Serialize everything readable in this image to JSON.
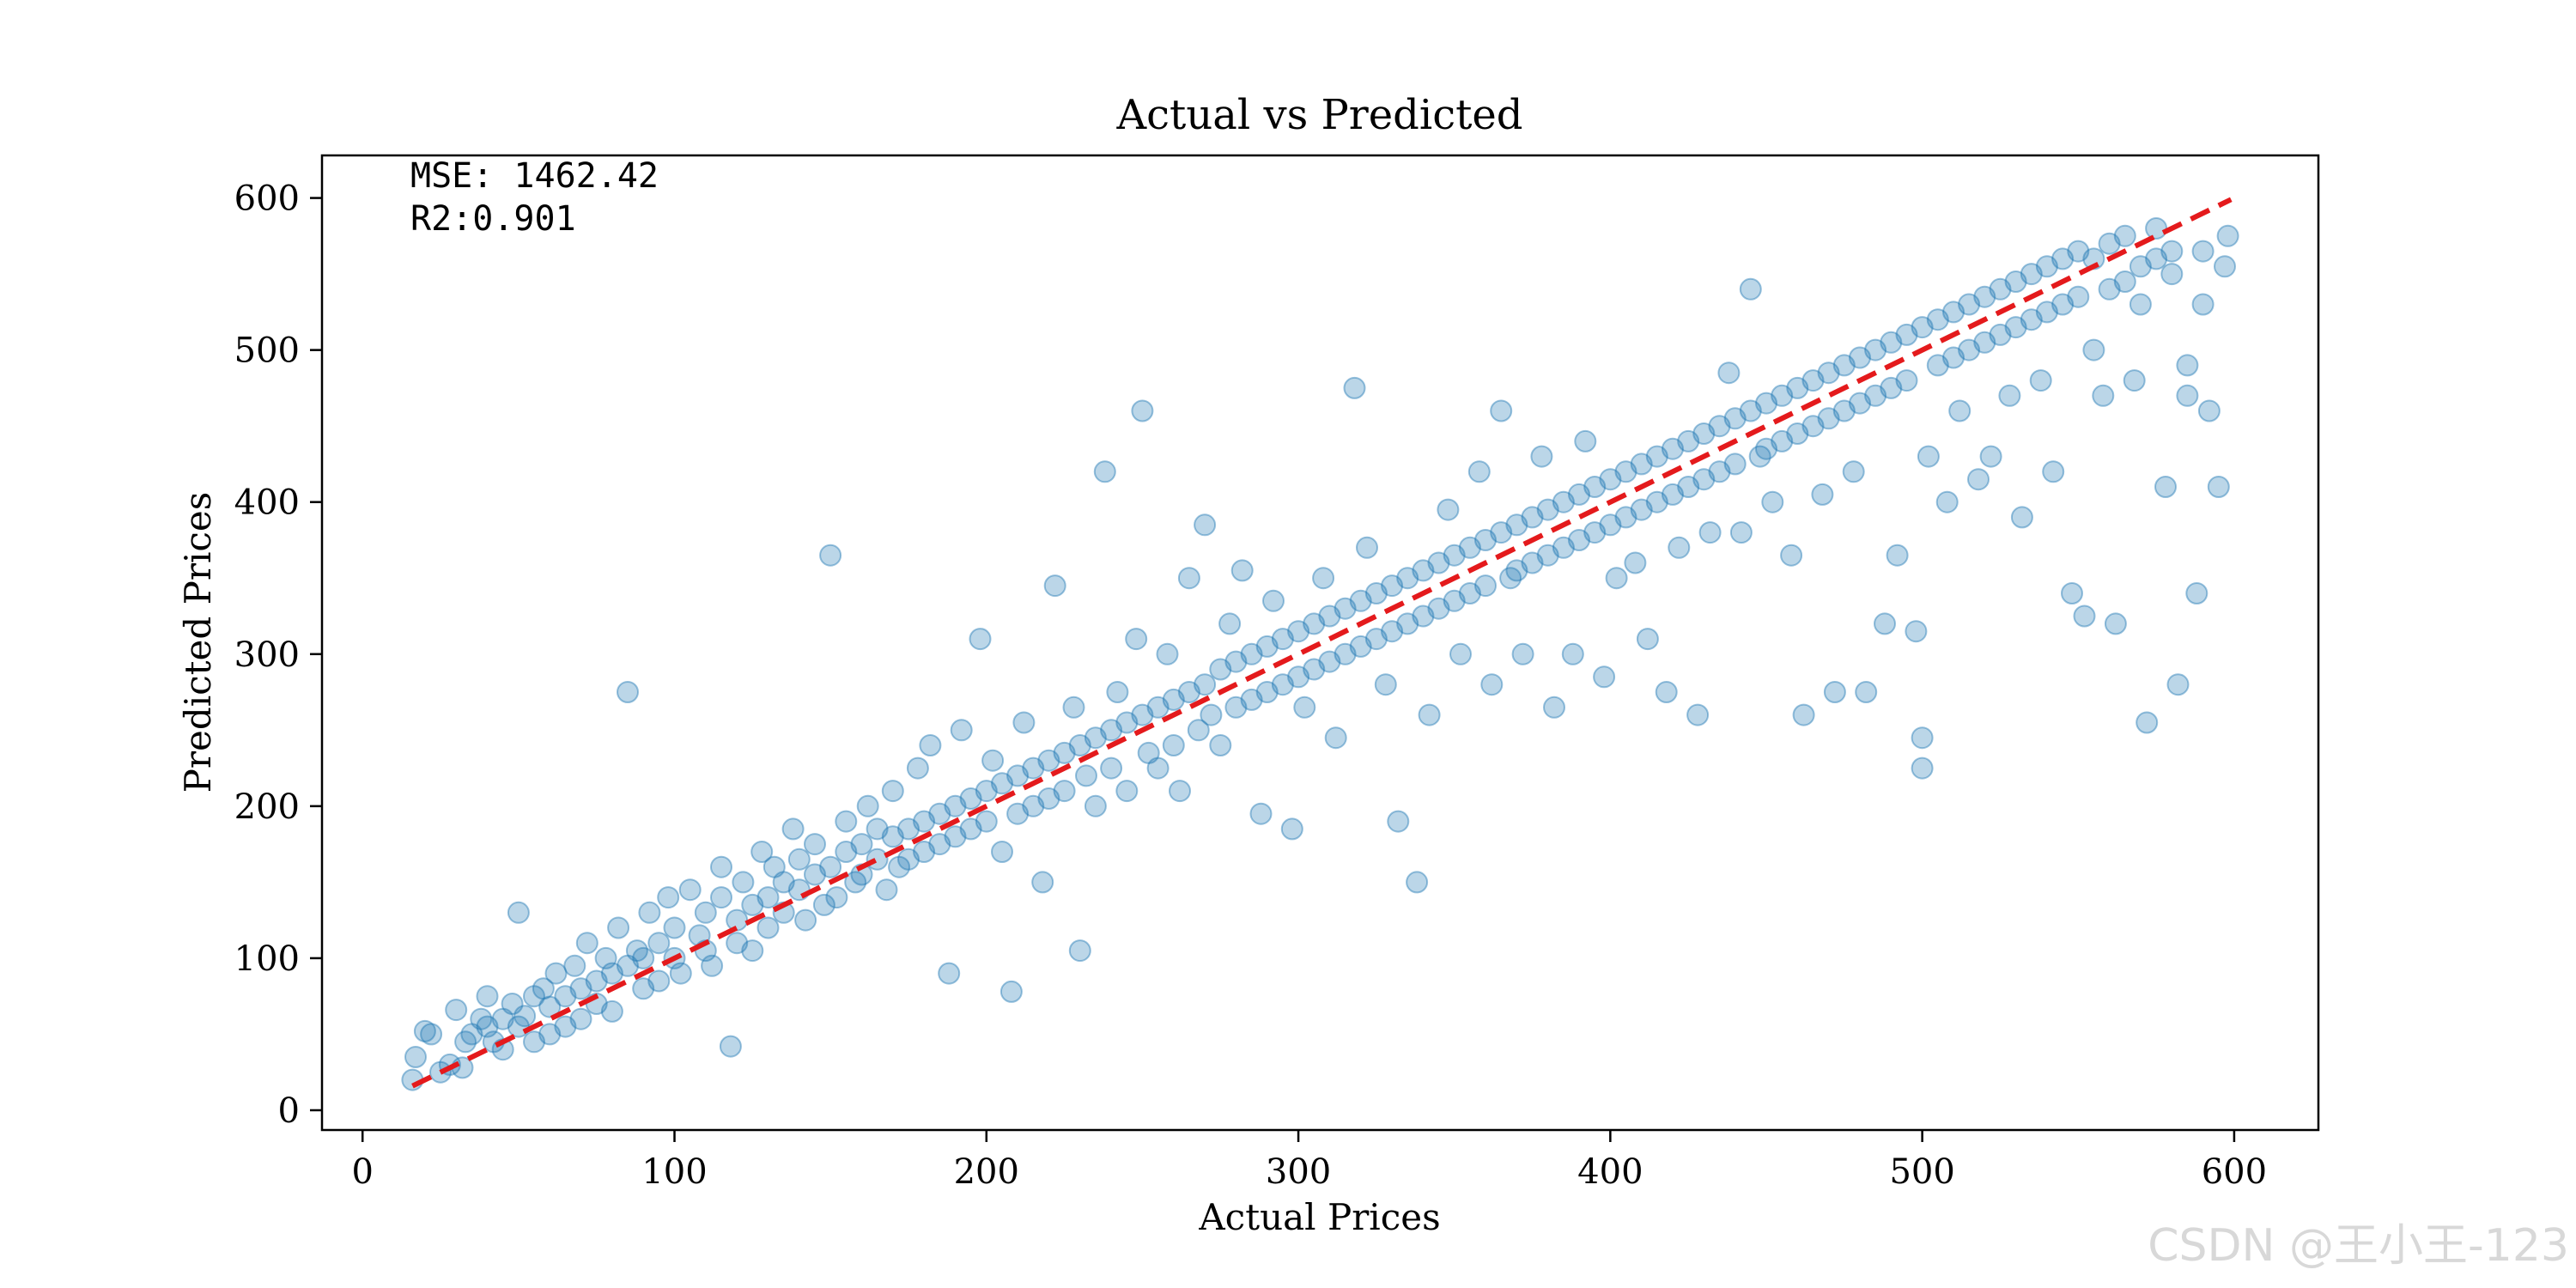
{
  "chart_data": {
    "type": "scatter",
    "title": "Actual vs Predicted",
    "xlabel": "Actual Prices",
    "ylabel": "Predicted Prices",
    "xlim": [
      -13,
      627
    ],
    "ylim": [
      -13,
      628
    ],
    "xticks": [
      0,
      100,
      200,
      300,
      400,
      500,
      600
    ],
    "yticks": [
      0,
      100,
      200,
      300,
      400,
      500,
      600
    ],
    "grid": false,
    "point_color": "#1f77b4",
    "point_alpha": 0.3,
    "reference_line": {
      "style": "dashed",
      "color": "#e41a1c",
      "x": [
        16,
        599
      ],
      "y": [
        16,
        599
      ]
    },
    "annotations": [
      {
        "label": "MSE: 1462.42"
      },
      {
        "label": "R2:0.901"
      }
    ],
    "points": [
      [
        16,
        20
      ],
      [
        17,
        35
      ],
      [
        20,
        52
      ],
      [
        22,
        50
      ],
      [
        25,
        25
      ],
      [
        28,
        30
      ],
      [
        30,
        66
      ],
      [
        32,
        28
      ],
      [
        33,
        45
      ],
      [
        35,
        50
      ],
      [
        38,
        60
      ],
      [
        40,
        55
      ],
      [
        40,
        75
      ],
      [
        42,
        45
      ],
      [
        45,
        60
      ],
      [
        45,
        40
      ],
      [
        48,
        70
      ],
      [
        50,
        55
      ],
      [
        50,
        130
      ],
      [
        52,
        62
      ],
      [
        55,
        75
      ],
      [
        55,
        45
      ],
      [
        58,
        80
      ],
      [
        60,
        68
      ],
      [
        60,
        50
      ],
      [
        62,
        90
      ],
      [
        65,
        75
      ],
      [
        65,
        55
      ],
      [
        68,
        95
      ],
      [
        70,
        80
      ],
      [
        70,
        60
      ],
      [
        72,
        110
      ],
      [
        75,
        85
      ],
      [
        75,
        70
      ],
      [
        78,
        100
      ],
      [
        80,
        90
      ],
      [
        80,
        65
      ],
      [
        82,
        120
      ],
      [
        85,
        95
      ],
      [
        85,
        275
      ],
      [
        88,
        105
      ],
      [
        90,
        100
      ],
      [
        90,
        80
      ],
      [
        92,
        130
      ],
      [
        95,
        110
      ],
      [
        95,
        85
      ],
      [
        98,
        140
      ],
      [
        100,
        100
      ],
      [
        100,
        120
      ],
      [
        102,
        90
      ],
      [
        105,
        145
      ],
      [
        108,
        115
      ],
      [
        110,
        105
      ],
      [
        110,
        130
      ],
      [
        112,
        95
      ],
      [
        115,
        140
      ],
      [
        115,
        160
      ],
      [
        118,
        42
      ],
      [
        120,
        125
      ],
      [
        120,
        110
      ],
      [
        122,
        150
      ],
      [
        125,
        135
      ],
      [
        125,
        105
      ],
      [
        128,
        170
      ],
      [
        130,
        140
      ],
      [
        130,
        120
      ],
      [
        132,
        160
      ],
      [
        135,
        150
      ],
      [
        135,
        130
      ],
      [
        138,
        185
      ],
      [
        140,
        145
      ],
      [
        140,
        165
      ],
      [
        142,
        125
      ],
      [
        145,
        155
      ],
      [
        145,
        175
      ],
      [
        148,
        135
      ],
      [
        150,
        160
      ],
      [
        150,
        365
      ],
      [
        152,
        140
      ],
      [
        155,
        170
      ],
      [
        155,
        190
      ],
      [
        158,
        150
      ],
      [
        160,
        175
      ],
      [
        160,
        155
      ],
      [
        162,
        200
      ],
      [
        165,
        165
      ],
      [
        165,
        185
      ],
      [
        168,
        145
      ],
      [
        170,
        180
      ],
      [
        170,
        210
      ],
      [
        172,
        160
      ],
      [
        175,
        185
      ],
      [
        175,
        165
      ],
      [
        178,
        225
      ],
      [
        180,
        190
      ],
      [
        180,
        170
      ],
      [
        182,
        240
      ],
      [
        185,
        195
      ],
      [
        185,
        175
      ],
      [
        188,
        90
      ],
      [
        190,
        200
      ],
      [
        190,
        180
      ],
      [
        192,
        250
      ],
      [
        195,
        205
      ],
      [
        195,
        185
      ],
      [
        198,
        310
      ],
      [
        200,
        210
      ],
      [
        200,
        190
      ],
      [
        202,
        230
      ],
      [
        205,
        215
      ],
      [
        205,
        170
      ],
      [
        208,
        78
      ],
      [
        210,
        220
      ],
      [
        210,
        195
      ],
      [
        212,
        255
      ],
      [
        215,
        225
      ],
      [
        215,
        200
      ],
      [
        218,
        150
      ],
      [
        220,
        230
      ],
      [
        220,
        205
      ],
      [
        222,
        345
      ],
      [
        225,
        235
      ],
      [
        225,
        210
      ],
      [
        228,
        265
      ],
      [
        230,
        240
      ],
      [
        230,
        105
      ],
      [
        232,
        220
      ],
      [
        235,
        245
      ],
      [
        235,
        200
      ],
      [
        238,
        420
      ],
      [
        240,
        250
      ],
      [
        240,
        225
      ],
      [
        242,
        275
      ],
      [
        245,
        255
      ],
      [
        245,
        210
      ],
      [
        248,
        310
      ],
      [
        250,
        260
      ],
      [
        250,
        460
      ],
      [
        252,
        235
      ],
      [
        255,
        265
      ],
      [
        255,
        225
      ],
      [
        258,
        300
      ],
      [
        260,
        270
      ],
      [
        260,
        240
      ],
      [
        262,
        210
      ],
      [
        265,
        275
      ],
      [
        265,
        350
      ],
      [
        268,
        250
      ],
      [
        270,
        280
      ],
      [
        270,
        385
      ],
      [
        272,
        260
      ],
      [
        275,
        290
      ],
      [
        275,
        240
      ],
      [
        278,
        320
      ],
      [
        280,
        295
      ],
      [
        280,
        265
      ],
      [
        282,
        355
      ],
      [
        285,
        300
      ],
      [
        285,
        270
      ],
      [
        288,
        195
      ],
      [
        290,
        305
      ],
      [
        290,
        275
      ],
      [
        292,
        335
      ],
      [
        295,
        310
      ],
      [
        295,
        280
      ],
      [
        298,
        185
      ],
      [
        300,
        315
      ],
      [
        300,
        285
      ],
      [
        302,
        265
      ],
      [
        305,
        320
      ],
      [
        305,
        290
      ],
      [
        308,
        350
      ],
      [
        310,
        325
      ],
      [
        310,
        295
      ],
      [
        312,
        245
      ],
      [
        315,
        330
      ],
      [
        315,
        300
      ],
      [
        318,
        475
      ],
      [
        320,
        335
      ],
      [
        320,
        305
      ],
      [
        322,
        370
      ],
      [
        325,
        340
      ],
      [
        325,
        310
      ],
      [
        328,
        280
      ],
      [
        330,
        345
      ],
      [
        330,
        315
      ],
      [
        332,
        190
      ],
      [
        335,
        350
      ],
      [
        335,
        320
      ],
      [
        338,
        150
      ],
      [
        340,
        355
      ],
      [
        340,
        325
      ],
      [
        342,
        260
      ],
      [
        345,
        360
      ],
      [
        345,
        330
      ],
      [
        348,
        395
      ],
      [
        350,
        365
      ],
      [
        350,
        335
      ],
      [
        352,
        300
      ],
      [
        355,
        370
      ],
      [
        355,
        340
      ],
      [
        358,
        420
      ],
      [
        360,
        375
      ],
      [
        360,
        345
      ],
      [
        362,
        280
      ],
      [
        365,
        380
      ],
      [
        365,
        460
      ],
      [
        368,
        350
      ],
      [
        370,
        385
      ],
      [
        370,
        355
      ],
      [
        372,
        300
      ],
      [
        375,
        390
      ],
      [
        375,
        360
      ],
      [
        378,
        430
      ],
      [
        380,
        395
      ],
      [
        380,
        365
      ],
      [
        382,
        265
      ],
      [
        385,
        400
      ],
      [
        385,
        370
      ],
      [
        388,
        300
      ],
      [
        390,
        405
      ],
      [
        390,
        375
      ],
      [
        392,
        440
      ],
      [
        395,
        410
      ],
      [
        395,
        380
      ],
      [
        398,
        285
      ],
      [
        400,
        415
      ],
      [
        400,
        385
      ],
      [
        402,
        350
      ],
      [
        405,
        420
      ],
      [
        405,
        390
      ],
      [
        408,
        360
      ],
      [
        410,
        425
      ],
      [
        410,
        395
      ],
      [
        412,
        310
      ],
      [
        415,
        430
      ],
      [
        415,
        400
      ],
      [
        418,
        275
      ],
      [
        420,
        435
      ],
      [
        420,
        405
      ],
      [
        422,
        370
      ],
      [
        425,
        440
      ],
      [
        425,
        410
      ],
      [
        428,
        260
      ],
      [
        430,
        445
      ],
      [
        430,
        415
      ],
      [
        432,
        380
      ],
      [
        435,
        450
      ],
      [
        435,
        420
      ],
      [
        438,
        485
      ],
      [
        440,
        455
      ],
      [
        440,
        425
      ],
      [
        442,
        380
      ],
      [
        445,
        460
      ],
      [
        445,
        540
      ],
      [
        448,
        430
      ],
      [
        450,
        465
      ],
      [
        450,
        435
      ],
      [
        452,
        400
      ],
      [
        455,
        470
      ],
      [
        455,
        440
      ],
      [
        458,
        365
      ],
      [
        460,
        475
      ],
      [
        460,
        445
      ],
      [
        462,
        260
      ],
      [
        465,
        480
      ],
      [
        465,
        450
      ],
      [
        468,
        405
      ],
      [
        470,
        485
      ],
      [
        470,
        455
      ],
      [
        472,
        275
      ],
      [
        475,
        490
      ],
      [
        475,
        460
      ],
      [
        478,
        420
      ],
      [
        480,
        495
      ],
      [
        480,
        465
      ],
      [
        482,
        275
      ],
      [
        485,
        500
      ],
      [
        485,
        470
      ],
      [
        488,
        320
      ],
      [
        490,
        505
      ],
      [
        490,
        475
      ],
      [
        492,
        365
      ],
      [
        495,
        510
      ],
      [
        495,
        480
      ],
      [
        498,
        315
      ],
      [
        500,
        515
      ],
      [
        500,
        245
      ],
      [
        500,
        225
      ],
      [
        502,
        430
      ],
      [
        505,
        520
      ],
      [
        505,
        490
      ],
      [
        508,
        400
      ],
      [
        510,
        525
      ],
      [
        510,
        495
      ],
      [
        512,
        460
      ],
      [
        515,
        530
      ],
      [
        515,
        500
      ],
      [
        518,
        415
      ],
      [
        520,
        535
      ],
      [
        520,
        505
      ],
      [
        522,
        430
      ],
      [
        525,
        540
      ],
      [
        525,
        510
      ],
      [
        528,
        470
      ],
      [
        530,
        545
      ],
      [
        530,
        515
      ],
      [
        532,
        390
      ],
      [
        535,
        550
      ],
      [
        535,
        520
      ],
      [
        538,
        480
      ],
      [
        540,
        555
      ],
      [
        540,
        525
      ],
      [
        542,
        420
      ],
      [
        545,
        560
      ],
      [
        545,
        530
      ],
      [
        548,
        340
      ],
      [
        550,
        565
      ],
      [
        550,
        535
      ],
      [
        552,
        325
      ],
      [
        555,
        560
      ],
      [
        555,
        500
      ],
      [
        558,
        470
      ],
      [
        560,
        570
      ],
      [
        560,
        540
      ],
      [
        562,
        320
      ],
      [
        565,
        575
      ],
      [
        565,
        545
      ],
      [
        568,
        480
      ],
      [
        570,
        555
      ],
      [
        570,
        530
      ],
      [
        572,
        255
      ],
      [
        575,
        560
      ],
      [
        575,
        580
      ],
      [
        578,
        410
      ],
      [
        580,
        565
      ],
      [
        580,
        550
      ],
      [
        582,
        280
      ],
      [
        585,
        490
      ],
      [
        585,
        470
      ],
      [
        588,
        340
      ],
      [
        590,
        565
      ],
      [
        590,
        530
      ],
      [
        592,
        460
      ],
      [
        595,
        410
      ],
      [
        597,
        555
      ],
      [
        598,
        575
      ]
    ]
  }
}
